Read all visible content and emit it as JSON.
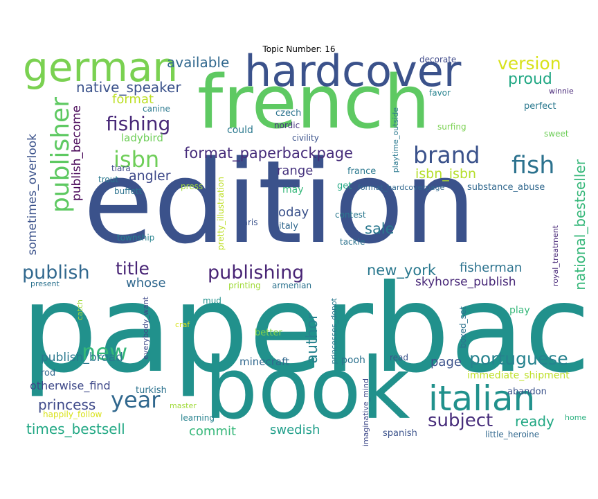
{
  "chart_data": {
    "type": "wordcloud",
    "title": "Topic Number: 16",
    "words": [
      {
        "text": "paperback",
        "color": "#21918c"
      },
      {
        "text": "edition",
        "color": "#3b528b"
      },
      {
        "text": "book",
        "color": "#21918c"
      },
      {
        "text": "french",
        "color": "#5ec962"
      },
      {
        "text": "hardcover",
        "color": "#3b528b"
      },
      {
        "text": "german",
        "color": "#7ad151"
      },
      {
        "text": "italian",
        "color": "#21918c"
      },
      {
        "text": "publisher",
        "color": "#5ec962"
      },
      {
        "text": "year",
        "color": "#31688e"
      },
      {
        "text": "brand",
        "color": "#3b528b"
      },
      {
        "text": "fish",
        "color": "#2c728e"
      },
      {
        "text": "new",
        "color": "#35b779"
      },
      {
        "text": "isbn",
        "color": "#6ece58"
      },
      {
        "text": "fishing",
        "color": "#482878"
      },
      {
        "text": "portuguese",
        "color": "#26828e"
      },
      {
        "text": "subject",
        "color": "#472d7b"
      },
      {
        "text": "publishing",
        "color": "#482475"
      },
      {
        "text": "publish",
        "color": "#31688e"
      },
      {
        "text": "version",
        "color": "#d8e219"
      },
      {
        "text": "national_bestseller",
        "color": "#35b779"
      },
      {
        "text": "format_paperbackpage",
        "color": "#472d7b"
      },
      {
        "text": "title",
        "color": "#482475"
      },
      {
        "text": "proud",
        "color": "#22a884"
      },
      {
        "text": "available",
        "color": "#31688e"
      },
      {
        "text": "native_speaker",
        "color": "#3b528b"
      },
      {
        "text": "new_york",
        "color": "#2a788e"
      },
      {
        "text": "times_bestsell",
        "color": "#22a884"
      },
      {
        "text": "ready",
        "color": "#22a884"
      },
      {
        "text": "author",
        "color": "#26828e"
      },
      {
        "text": "princess",
        "color": "#3e4989"
      },
      {
        "text": "sale",
        "color": "#2a788e"
      },
      {
        "text": "page",
        "color": "#3b528b"
      },
      {
        "text": "format",
        "color": "#bddf26"
      },
      {
        "text": "isbn_isbn",
        "color": "#b5de2b"
      },
      {
        "text": "publish_become",
        "color": "#440154"
      },
      {
        "text": "angler",
        "color": "#3e4989"
      },
      {
        "text": "sometimes_overlook",
        "color": "#3b528b"
      },
      {
        "text": "fisherman",
        "color": "#2c728e"
      },
      {
        "text": "range",
        "color": "#46337e"
      },
      {
        "text": "today",
        "color": "#3b528b"
      },
      {
        "text": "whose",
        "color": "#31688e"
      },
      {
        "text": "swedish",
        "color": "#1f9e89"
      },
      {
        "text": "commit",
        "color": "#35b779"
      },
      {
        "text": "skyhorse_publish",
        "color": "#482878"
      },
      {
        "text": "publish_broad",
        "color": "#2a788e"
      },
      {
        "text": "ladybird",
        "color": "#6ece58"
      },
      {
        "text": "minecraft",
        "color": "#31688e"
      },
      {
        "text": "otherwise_find",
        "color": "#3e4989"
      },
      {
        "text": "immediate_shipment",
        "color": "#bddf26"
      },
      {
        "text": "could",
        "color": "#2a788e"
      },
      {
        "text": "perfect",
        "color": "#2a788e"
      },
      {
        "text": "canine",
        "color": "#2a788e"
      },
      {
        "text": "czech",
        "color": "#2c728e"
      },
      {
        "text": "nordic",
        "color": "#46337e"
      },
      {
        "text": "civility",
        "color": "#3b528b"
      },
      {
        "text": "favor",
        "color": "#26828e"
      },
      {
        "text": "winnie",
        "color": "#482878"
      },
      {
        "text": "decorate",
        "color": "#3e4989"
      },
      {
        "text": "surfing",
        "color": "#7ad151"
      },
      {
        "text": "sweet",
        "color": "#6ece58"
      },
      {
        "text": "playtime_outside",
        "color": "#2a788e"
      },
      {
        "text": "tiara",
        "color": "#3e4989"
      },
      {
        "text": "trout",
        "color": "#2a788e"
      },
      {
        "text": "press",
        "color": "#a0da39"
      },
      {
        "text": "buffett",
        "color": "#2c728e"
      },
      {
        "text": "france",
        "color": "#2a788e"
      },
      {
        "text": "may",
        "color": "#35b779"
      },
      {
        "text": "get",
        "color": "#22a884"
      },
      {
        "text": "format_hardcoverpage",
        "color": "#31688e"
      },
      {
        "text": "substance_abuse",
        "color": "#31688e"
      },
      {
        "text": "pretty_illustration",
        "color": "#bddf26"
      },
      {
        "text": "paris",
        "color": "#3b528b"
      },
      {
        "text": "italy",
        "color": "#31688e"
      },
      {
        "text": "contest",
        "color": "#2a788e"
      },
      {
        "text": "tackle",
        "color": "#2c728e"
      },
      {
        "text": "township",
        "color": "#26828e"
      },
      {
        "text": "royal_treatment",
        "color": "#482878"
      },
      {
        "text": "present",
        "color": "#2c728e"
      },
      {
        "text": "printing",
        "color": "#a0da39"
      },
      {
        "text": "armenian",
        "color": "#2c728e"
      },
      {
        "text": "catch",
        "color": "#a0da39"
      },
      {
        "text": "mud",
        "color": "#21918c"
      },
      {
        "text": "everybody_want",
        "color": "#3e4989"
      },
      {
        "text": "craf",
        "color": "#d8e219"
      },
      {
        "text": "princesses_donot",
        "color": "#2a788e"
      },
      {
        "text": "better",
        "color": "#86d549"
      },
      {
        "text": "boxed_set",
        "color": "#2c728e"
      },
      {
        "text": "play",
        "color": "#35b779"
      },
      {
        "text": "rod",
        "color": "#31688e"
      },
      {
        "text": "pooh",
        "color": "#2c728e"
      },
      {
        "text": "read",
        "color": "#3b528b"
      },
      {
        "text": "turkish",
        "color": "#2c728e"
      },
      {
        "text": "imaginative_mind",
        "color": "#3e4989"
      },
      {
        "text": "abandon",
        "color": "#3b528b"
      },
      {
        "text": "happily_follow",
        "color": "#d8e219"
      },
      {
        "text": "master",
        "color": "#a0da39"
      },
      {
        "text": "learning",
        "color": "#26828e"
      },
      {
        "text": "spanish",
        "color": "#3b528b"
      },
      {
        "text": "home",
        "color": "#2ab07f"
      },
      {
        "text": "little_heroine",
        "color": "#31688e"
      }
    ]
  }
}
